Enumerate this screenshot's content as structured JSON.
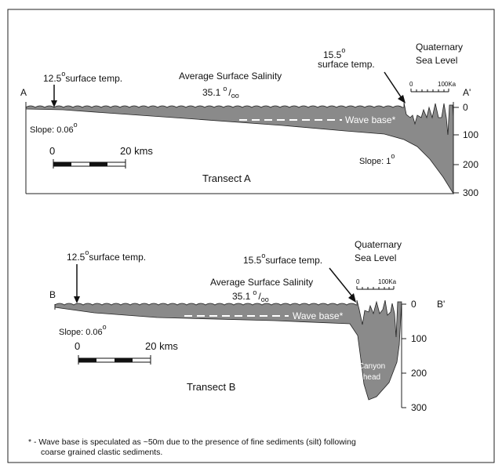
{
  "transect_a": {
    "title": "Transect A",
    "start_label": "A",
    "end_label": "A'",
    "left_temp": {
      "value": "12.5",
      "degree": "o",
      "label": "surface temp."
    },
    "right_temp": {
      "value": "15.5",
      "degree": "o",
      "label": "surface temp."
    },
    "salinity": {
      "label": "Average Surface Salinity",
      "value": "35.1",
      "unit_top": "o",
      "unit_slash": "/",
      "unit_bottom": "oo"
    },
    "sea_level": {
      "title_line1": "Quaternary",
      "title_line2": "Sea Level",
      "scale_start": "0",
      "scale_end": "100Ka"
    },
    "wave_base": "Wave base*",
    "left_slope": {
      "label": "Slope: 0.06",
      "degree": "o"
    },
    "right_slope": {
      "label": "Slope: 1",
      "degree": "o"
    },
    "scale": {
      "start": "0",
      "end": "20 kms"
    },
    "depth_ticks": [
      "0",
      "100",
      "200",
      "300"
    ]
  },
  "transect_b": {
    "title": "Transect B",
    "start_label": "B",
    "end_label": "B'",
    "left_temp": {
      "value": "12.5",
      "degree": "o",
      "label": "surface temp."
    },
    "right_temp": {
      "value": "15.5",
      "degree": "o",
      "label": "surface temp."
    },
    "salinity": {
      "label": "Average Surface Salinity",
      "value": "35.1",
      "unit_top": "o",
      "unit_slash": "/",
      "unit_bottom": "oo"
    },
    "sea_level": {
      "title_line1": "Quaternary",
      "title_line2": "Sea Level",
      "scale_start": "0",
      "scale_end": "100Ka"
    },
    "wave_base": "Wave base*",
    "left_slope": {
      "label": "Slope: 0.06",
      "degree": "o"
    },
    "canyon_label": [
      "Canyon",
      "head"
    ],
    "scale": {
      "start": "0",
      "end": "20 kms"
    },
    "depth_ticks": [
      "0",
      "100",
      "200",
      "300"
    ]
  },
  "footnote": [
    "* - Wave base is speculated as ~50m due to the presence of fine sediments (silt) following",
    "coarse grained clastic sediments."
  ]
}
